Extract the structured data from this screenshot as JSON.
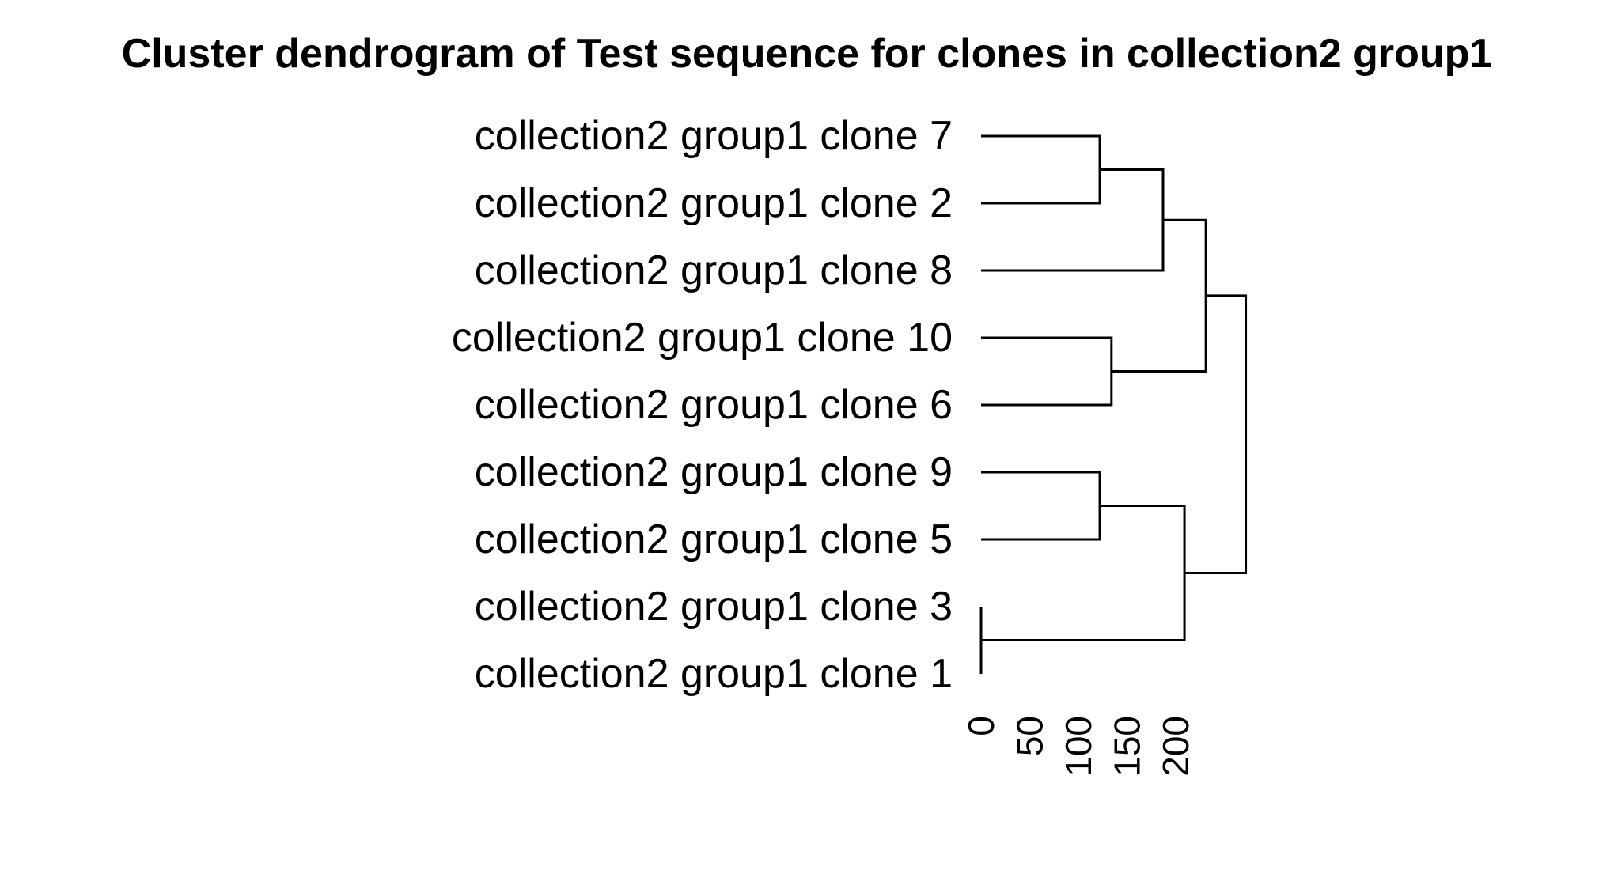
{
  "chart_data": {
    "type": "dendrogram",
    "title": "Cluster dendrogram of Test sequence for clones in collection2 group1",
    "orientation": "horizontal",
    "leaves": [
      "collection2 group1 clone 7",
      "collection2 group1 clone 2",
      "collection2 group1 clone 8",
      "collection2 group1 clone 10",
      "collection2 group1 clone 6",
      "collection2 group1 clone 9",
      "collection2 group1 clone 5",
      "collection2 group1 clone 3",
      "collection2 group1 clone 1"
    ],
    "merges": [
      {
        "name": "m1",
        "left": "collection2 group1 clone 7",
        "right": "collection2 group1 clone 2",
        "height": 122
      },
      {
        "name": "m2",
        "left": "m1",
        "right": "collection2 group1 clone 8",
        "height": 187
      },
      {
        "name": "m3",
        "left": "collection2 group1 clone 10",
        "right": "collection2 group1 clone 6",
        "height": 134
      },
      {
        "name": "m4",
        "left": "m2",
        "right": "m3",
        "height": 231
      },
      {
        "name": "m5",
        "left": "collection2 group1 clone 9",
        "right": "collection2 group1 clone 5",
        "height": 122
      },
      {
        "name": "m6",
        "left": "collection2 group1 clone 3",
        "right": "collection2 group1 clone 1",
        "height": 0
      },
      {
        "name": "m7",
        "left": "m5",
        "right": "m6",
        "height": 209
      },
      {
        "name": "m8",
        "left": "m4",
        "right": "m7",
        "height": 272
      }
    ],
    "axis": {
      "ticks": [
        0,
        50,
        100,
        150,
        200
      ],
      "tick_labels": [
        "0",
        "50",
        "100",
        "150",
        "200"
      ],
      "range": [
        0,
        272
      ]
    },
    "grid": false,
    "legend": "none"
  }
}
